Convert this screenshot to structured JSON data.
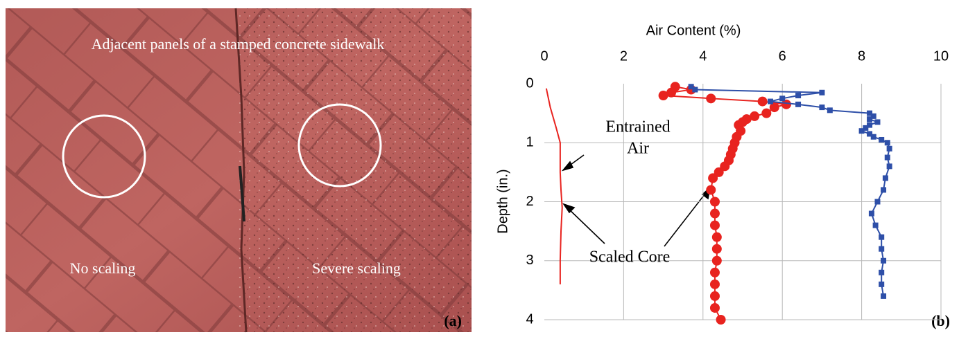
{
  "photo": {
    "caption": "Adjacent panels of a stamped concrete sidewalk",
    "left_label": "No scaling",
    "right_label": "Severe scaling",
    "panel_label": "(a)"
  },
  "chart_data": {
    "type": "line",
    "panel_label": "(b)",
    "x_label": "Air Content (%)",
    "y_label": "Depth (in.)",
    "xlim": [
      0,
      10
    ],
    "xticks": [
      0,
      2,
      4,
      6,
      8,
      10
    ],
    "ylim": [
      0,
      4
    ],
    "yticks": [
      0,
      1,
      2,
      3,
      4
    ],
    "y_inverted": true,
    "x_axis_top": true,
    "grid": true,
    "series": [
      {
        "color": "#e8231f",
        "marker": null,
        "x": [
          0.05,
          0.15,
          0.3,
          0.4,
          0.4,
          0.42,
          0.45,
          0.42,
          0.4,
          0.4
        ],
        "values": [
          0.08,
          0.4,
          0.75,
          1.0,
          1.5,
          1.8,
          2.1,
          2.5,
          3.0,
          3.4
        ]
      },
      {
        "color": "#e8231f",
        "marker": "circle",
        "x": [
          3.3,
          3.7,
          3.2,
          3.0,
          4.2,
          5.5,
          6.1,
          5.8,
          5.6,
          5.3,
          5.1,
          5.0,
          4.9,
          4.95,
          4.85,
          4.8,
          4.75,
          4.7,
          4.65,
          4.55,
          4.4,
          4.25,
          4.2,
          4.3,
          4.3,
          4.3,
          4.35,
          4.35,
          4.35,
          4.3,
          4.3,
          4.3,
          4.3,
          4.45
        ],
        "values": [
          0.05,
          0.1,
          0.15,
          0.2,
          0.25,
          0.3,
          0.35,
          0.4,
          0.5,
          0.55,
          0.6,
          0.65,
          0.7,
          0.8,
          0.9,
          1.0,
          1.1,
          1.2,
          1.3,
          1.4,
          1.5,
          1.6,
          1.8,
          2.0,
          2.2,
          2.4,
          2.6,
          2.8,
          3.0,
          3.2,
          3.4,
          3.6,
          3.8,
          4.0
        ]
      },
      {
        "color": "#2e4fa8",
        "marker": "square",
        "x": [
          3.7,
          3.8,
          7.0,
          6.4,
          6.0,
          5.7,
          6.4,
          7.0,
          7.2,
          8.2,
          8.3,
          8.2,
          8.4,
          8.2,
          8.1,
          8.0,
          8.2,
          8.3,
          8.5,
          8.65,
          8.7,
          8.65,
          8.7,
          8.6,
          8.55,
          8.4,
          8.25,
          8.35,
          8.5,
          8.5,
          8.55,
          8.5,
          8.5,
          8.55
        ],
        "values": [
          0.05,
          0.1,
          0.15,
          0.2,
          0.25,
          0.3,
          0.35,
          0.4,
          0.45,
          0.5,
          0.55,
          0.6,
          0.65,
          0.7,
          0.75,
          0.8,
          0.85,
          0.9,
          0.95,
          1.0,
          1.1,
          1.25,
          1.4,
          1.6,
          1.8,
          2.0,
          2.2,
          2.4,
          2.6,
          2.8,
          3.0,
          3.2,
          3.4,
          3.6
        ]
      }
    ],
    "annotations": [
      {
        "lines": [
          "Entrained",
          "Air"
        ]
      },
      {
        "lines": [
          "Scaled Core"
        ]
      }
    ]
  }
}
